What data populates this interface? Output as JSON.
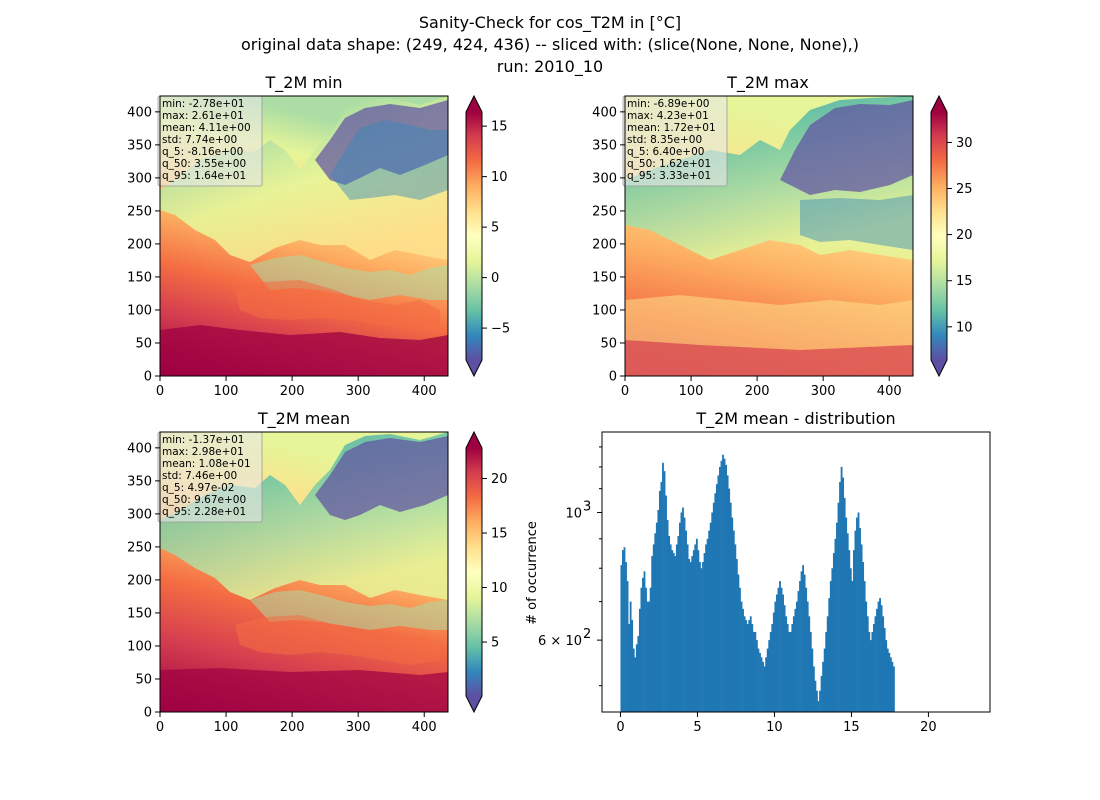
{
  "figure": {
    "title_lines": [
      "Sanity-Check for cos_T2M in [°C]",
      "original data shape: (249, 424, 436) -- sliced with: (slice(None, None, None),)",
      "run: 2010_10"
    ]
  },
  "chart_data": [
    {
      "type": "heatmap",
      "title": "T_2M min",
      "xlim": [
        0,
        436
      ],
      "ylim": [
        0,
        424
      ],
      "x_ticks": [
        "0",
        "100",
        "200",
        "300",
        "400"
      ],
      "y_ticks": [
        "0",
        "50",
        "100",
        "150",
        "200",
        "250",
        "300",
        "350",
        "400"
      ],
      "colorbar": {
        "range": [
          -8.16,
          16.4
        ],
        "ticks": [
          "15",
          "10",
          "5",
          "0",
          "−5"
        ],
        "tick_values": [
          15,
          10,
          5,
          0,
          -5
        ],
        "extend": "both"
      },
      "stats": [
        "min: -2.78e+01",
        "max: 2.61e+01",
        "mean: 4.11e+00",
        "std: 7.74e+00",
        "q_5: -8.16e+00",
        "q_50: 3.55e+00",
        "q_95: 1.64e+01"
      ]
    },
    {
      "type": "heatmap",
      "title": "T_2M max",
      "xlim": [
        0,
        436
      ],
      "ylim": [
        0,
        424
      ],
      "x_ticks": [
        "0",
        "100",
        "200",
        "300",
        "400"
      ],
      "y_ticks": [
        "0",
        "50",
        "100",
        "150",
        "200",
        "250",
        "300",
        "350",
        "400"
      ],
      "colorbar": {
        "range": [
          6.4,
          33.3
        ],
        "ticks": [
          "30",
          "25",
          "20",
          "15",
          "10"
        ],
        "tick_values": [
          30,
          25,
          20,
          15,
          10
        ],
        "extend": "both"
      },
      "stats": [
        "min: -6.89e+00",
        "max: 4.23e+01",
        "mean: 1.72e+01",
        "std: 8.35e+00",
        "q_5: 6.40e+00",
        "q_50: 1.62e+01",
        "q_95: 3.33e+01"
      ]
    },
    {
      "type": "heatmap",
      "title": "T_2M mean",
      "xlim": [
        0,
        436
      ],
      "ylim": [
        0,
        424
      ],
      "x_ticks": [
        "0",
        "100",
        "200",
        "300",
        "400"
      ],
      "y_ticks": [
        "0",
        "50",
        "100",
        "150",
        "200",
        "250",
        "300",
        "350",
        "400"
      ],
      "colorbar": {
        "range": [
          0.0497,
          22.8
        ],
        "ticks": [
          "20",
          "15",
          "10",
          "5"
        ],
        "tick_values": [
          20,
          15,
          10,
          5
        ],
        "extend": "both"
      },
      "stats": [
        "min: -1.37e+01",
        "max: 2.98e+01",
        "mean: 1.08e+01",
        "std: 7.46e+00",
        "q_5: 4.97e-02",
        "q_50: 9.67e+00",
        "q_95: 2.28e+01"
      ]
    },
    {
      "type": "bar",
      "title": "T_2M mean - distribution",
      "ylabel": "# of occurrence",
      "y_scale": "log",
      "xlim": [
        -1.2,
        24
      ],
      "ylim": [
        450,
        1380
      ],
      "x_ticks": [
        "0",
        "5",
        "10",
        "15",
        "20"
      ],
      "x_tick_values": [
        0,
        5,
        10,
        15,
        20
      ],
      "y_ticks": [
        "10",
        "6 × 10"
      ],
      "y_tick_exponents": [
        "3",
        "2"
      ],
      "y_tick_values": [
        1000,
        600
      ],
      "bar_color": "#1f77b4",
      "bin_start": 0.05,
      "bin_width": 0.1,
      "values": [
        810,
        860,
        870,
        820,
        760,
        640,
        700,
        650,
        580,
        560,
        590,
        610,
        680,
        740,
        770,
        790,
        740,
        700,
        700,
        740,
        840,
        880,
        920,
        960,
        1010,
        1090,
        1130,
        1220,
        1180,
        1070,
        970,
        910,
        880,
        860,
        850,
        840,
        880,
        910,
        960,
        1000,
        1020,
        980,
        930,
        880,
        830,
        820,
        840,
        860,
        880,
        900,
        860,
        820,
        800,
        820,
        850,
        880,
        900,
        930,
        960,
        1000,
        1040,
        1080,
        1120,
        1160,
        1200,
        1230,
        1260,
        1240,
        1210,
        1160,
        1100,
        1040,
        980,
        930,
        880,
        830,
        780,
        740,
        700,
        680,
        660,
        650,
        640,
        650,
        660,
        640,
        620,
        620,
        600,
        580,
        570,
        560,
        550,
        540,
        560,
        580,
        600,
        620,
        640,
        670,
        700,
        720,
        740,
        760,
        740,
        720,
        690,
        660,
        640,
        620,
        620,
        640,
        660,
        680,
        700,
        730,
        760,
        790,
        810,
        780,
        740,
        700,
        660,
        620,
        580,
        540,
        510,
        490,
        470,
        490,
        520,
        550,
        580,
        620,
        660,
        710,
        760,
        800,
        850,
        900,
        960,
        1040,
        1130,
        1200,
        1150,
        1060,
        980,
        920,
        860,
        800,
        760,
        860,
        930,
        980,
        1000,
        940,
        880,
        820,
        760,
        700,
        660,
        620,
        600,
        620,
        640,
        660,
        680,
        700,
        710,
        690,
        660,
        630,
        600,
        580,
        570,
        560,
        550,
        540
      ]
    }
  ]
}
